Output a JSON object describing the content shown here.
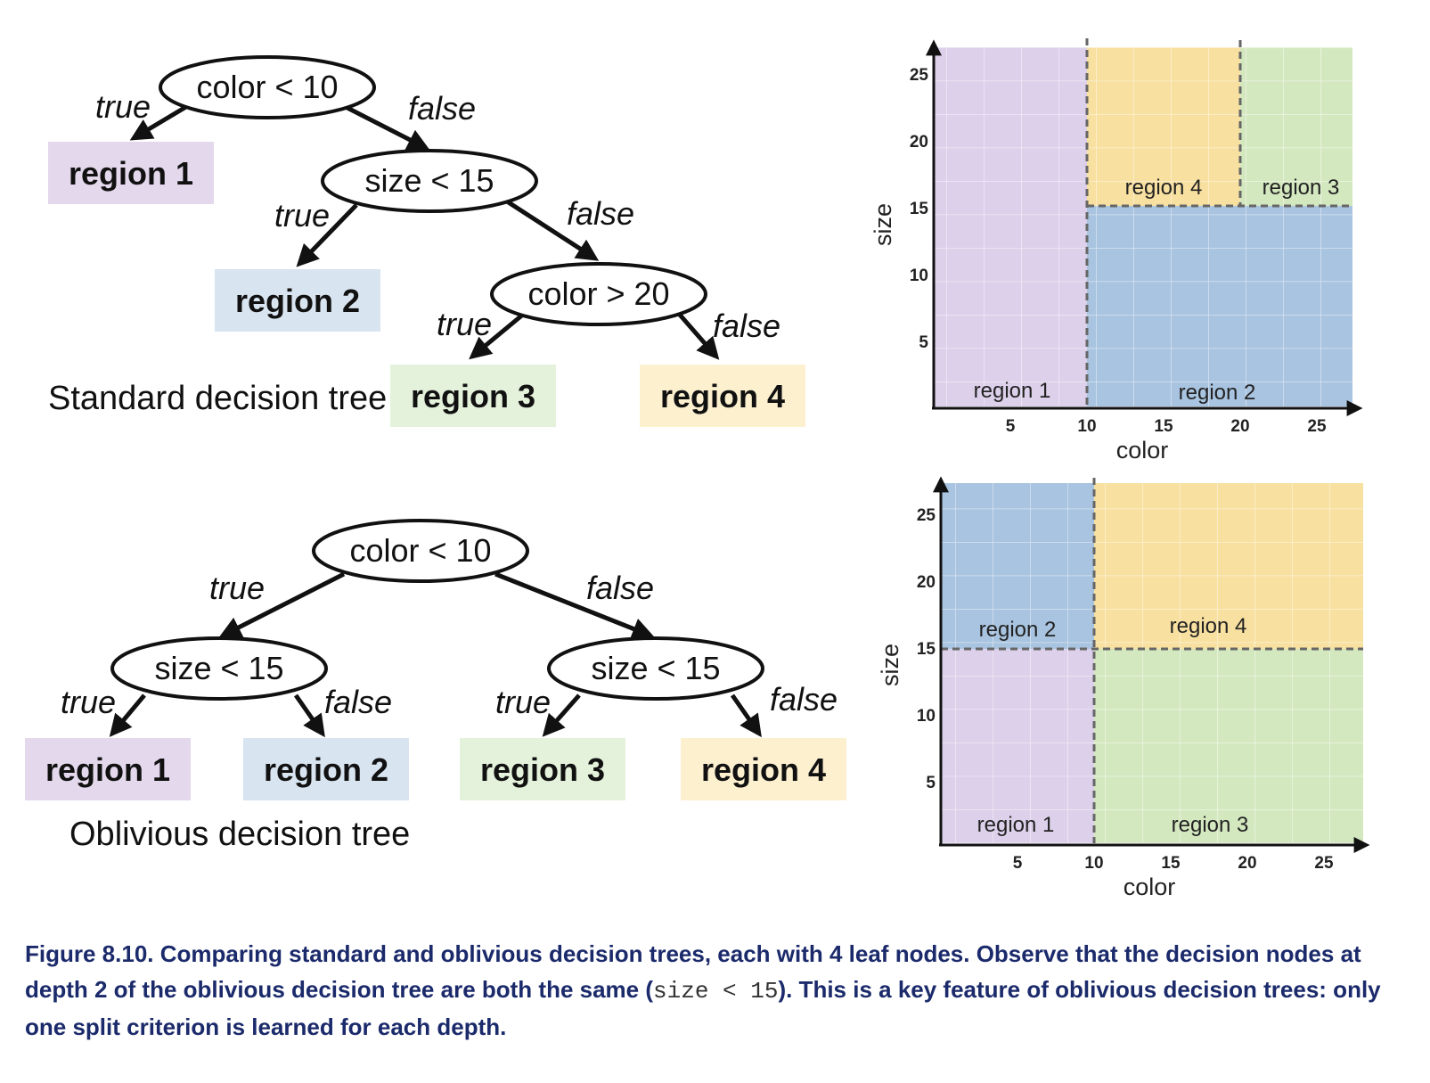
{
  "colors": {
    "region1": "#e4d8ec",
    "region2": "#d8e4f0",
    "region3": "#e4f2dc",
    "region4": "#fcf0cf",
    "plot_region1": "#dcd0ea",
    "plot_region2": "#a9c4e0",
    "plot_region3": "#d4e8c0",
    "plot_region4": "#f8e0a0",
    "caption": "#1b2a6b"
  },
  "standard_tree": {
    "caption": "Standard decision tree",
    "nodes": {
      "root": "color < 10",
      "mid": "size < 15",
      "low": "color > 20"
    },
    "edges": {
      "root_true": "true",
      "root_false": "false",
      "mid_true": "true",
      "mid_false": "false",
      "low_true": "true",
      "low_false": "false"
    },
    "leaves": {
      "l1": "region 1",
      "l2": "region 2",
      "l3": "region 3",
      "l4": "region 4"
    }
  },
  "oblivious_tree": {
    "caption": "Oblivious decision tree",
    "nodes": {
      "root": "color < 10",
      "left": "size < 15",
      "right": "size < 15"
    },
    "edges": {
      "root_true": "true",
      "root_false": "false",
      "left_true": "true",
      "left_false": "false",
      "right_true": "true",
      "right_false": "false"
    },
    "leaves": {
      "l1": "region 1",
      "l2": "region 2",
      "l3": "region 3",
      "l4": "region 4"
    }
  },
  "standard_plot": {
    "xlabel": "color",
    "ylabel": "size",
    "xticks": [
      "5",
      "10",
      "15",
      "20",
      "25"
    ],
    "yticks": [
      "5",
      "10",
      "15",
      "20",
      "25"
    ],
    "regions": {
      "r1": "region 1",
      "r2": "region 2",
      "r3": "region 3",
      "r4": "region 4"
    }
  },
  "oblivious_plot": {
    "xlabel": "color",
    "ylabel": "size",
    "xticks": [
      "5",
      "10",
      "15",
      "20",
      "25"
    ],
    "yticks": [
      "5",
      "10",
      "15",
      "20",
      "25"
    ],
    "regions": {
      "r1": "region 1",
      "r2": "region 2",
      "r3": "region 3",
      "r4": "region 4"
    }
  },
  "caption": {
    "before": "Figure 8.10. Comparing standard and oblivious decision trees, each with 4 leaf nodes. Observe that the decision nodes at depth 2 of the oblivious decision tree are both the same (",
    "code": "size < 15",
    "after": "). This is a key feature of oblivious decision trees: only one split criterion is learned for each depth."
  }
}
